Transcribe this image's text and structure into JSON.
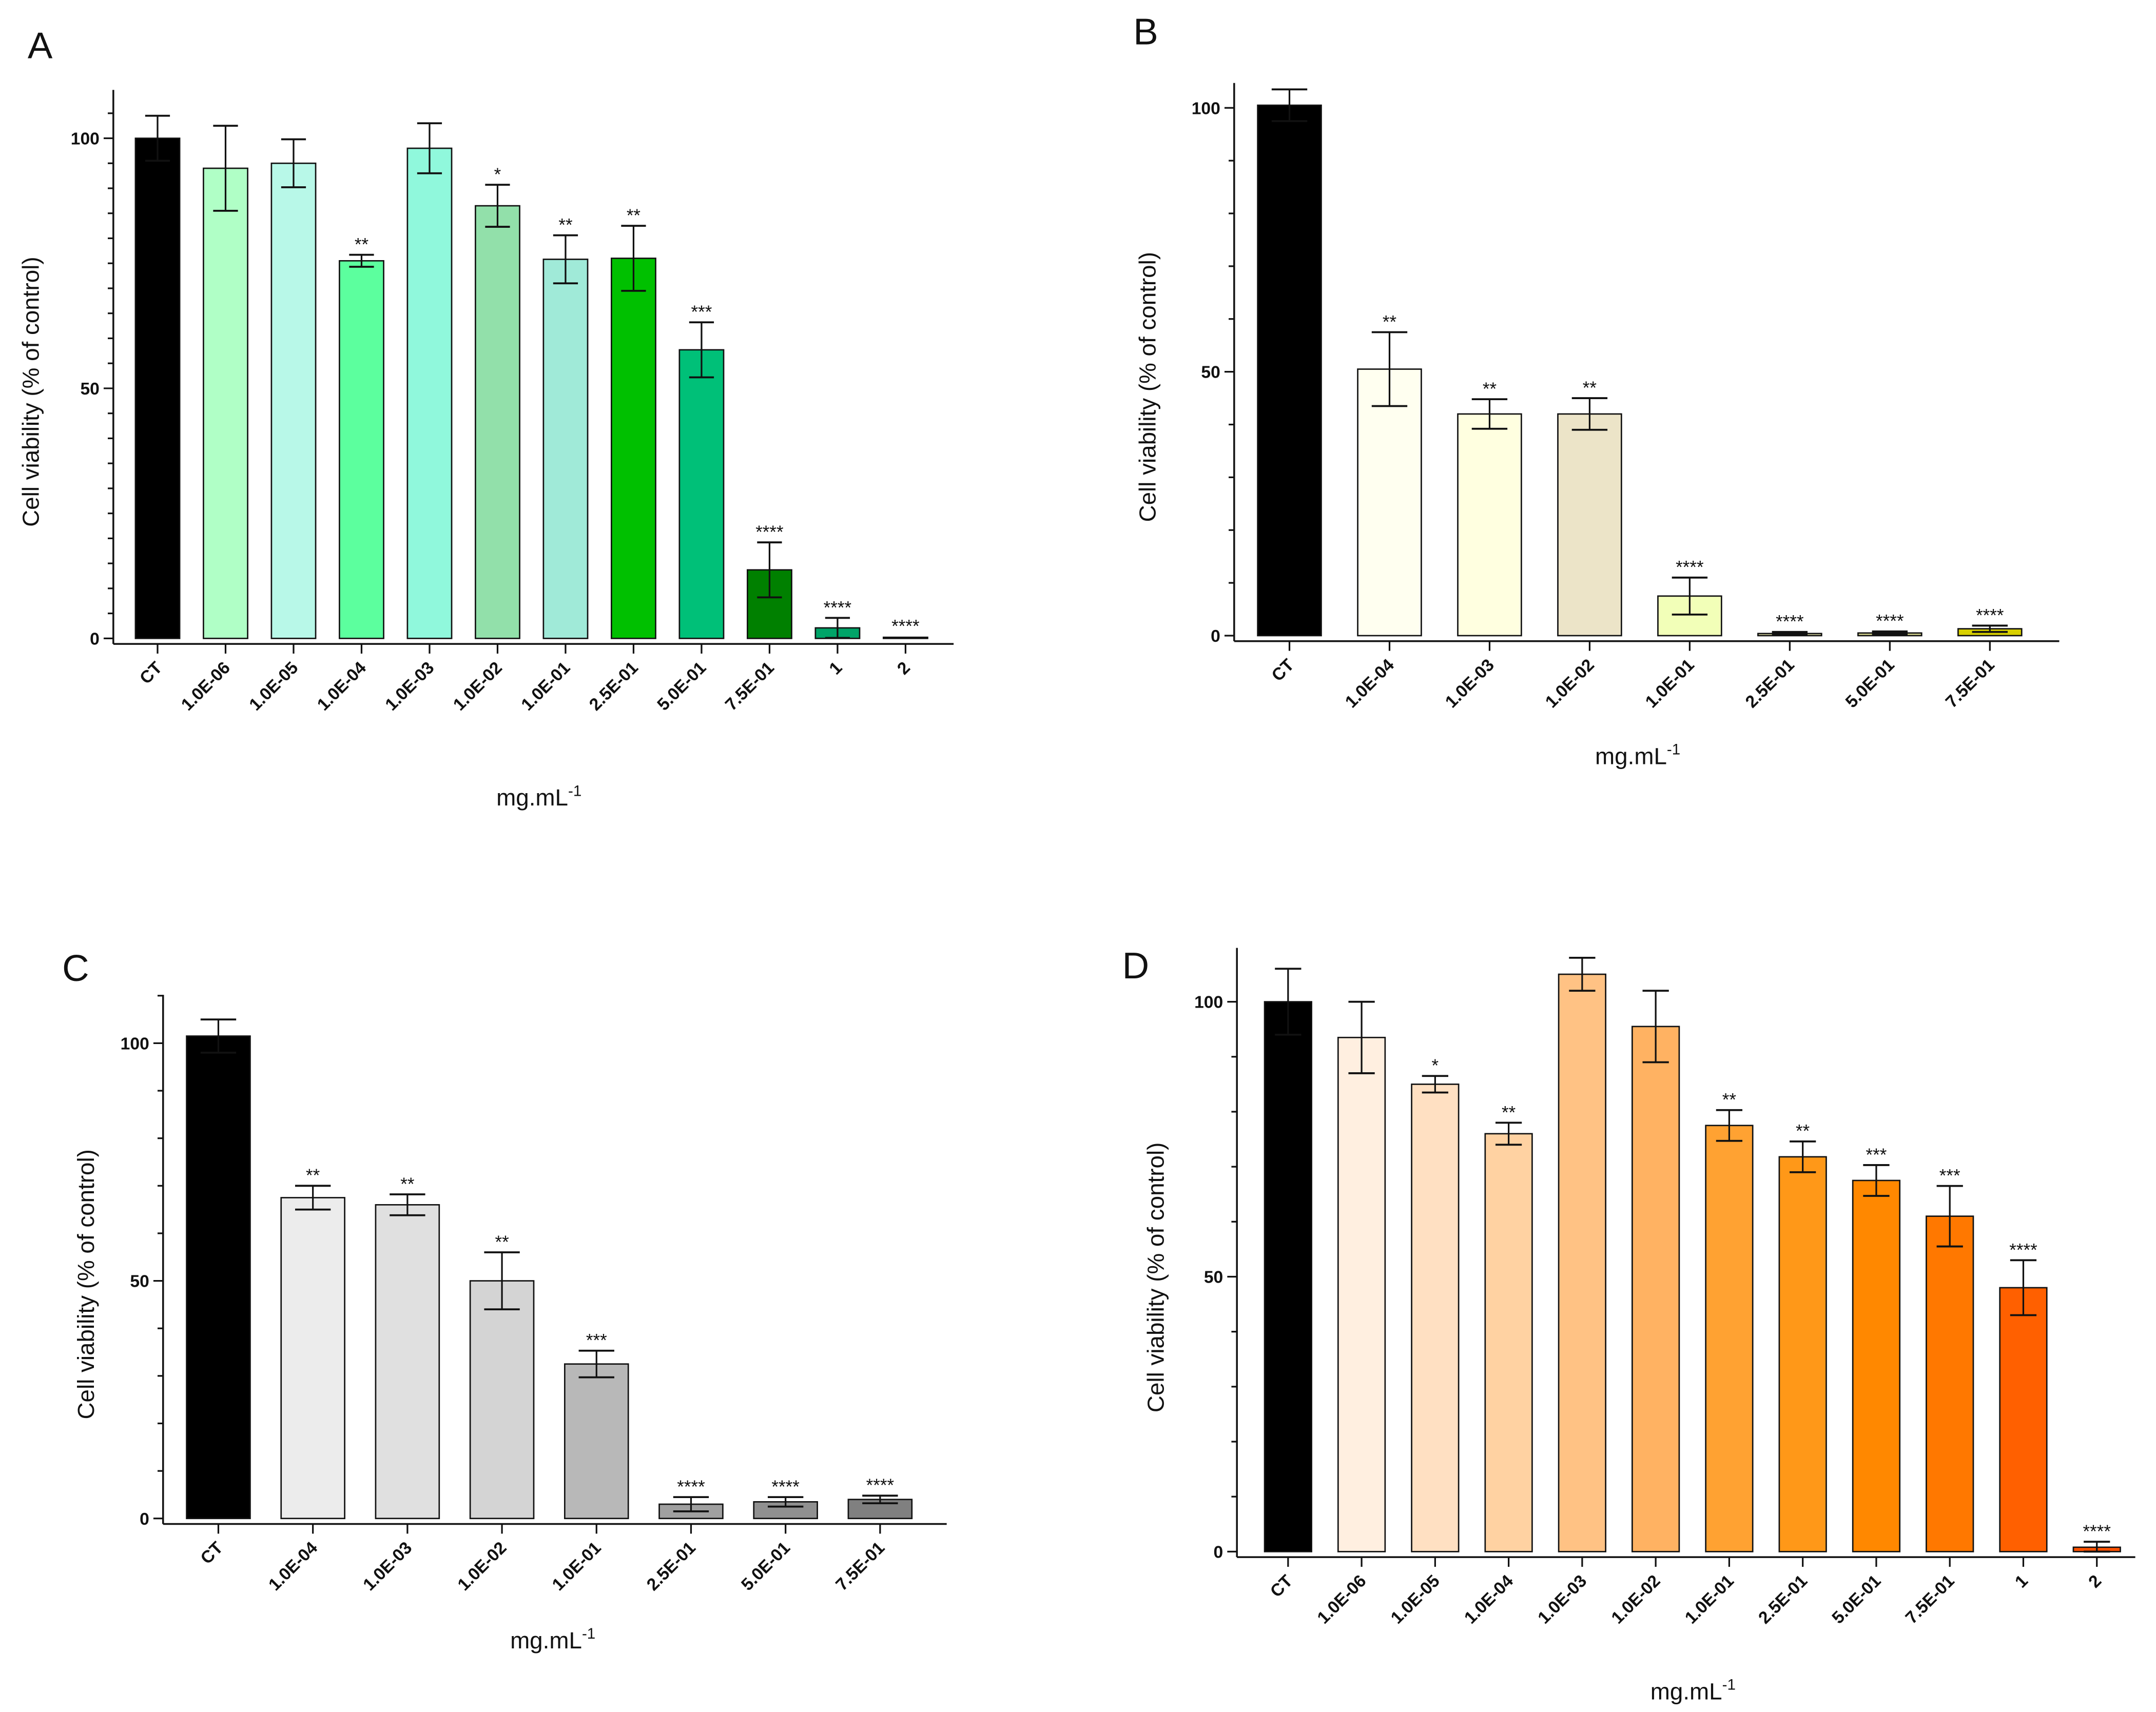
{
  "chart_data": [
    {
      "type": "bar",
      "panel": "A",
      "categories": [
        "CT",
        "1.0E-06",
        "1.0E-05",
        "1.0E-04",
        "1.0E-03",
        "1.0E-02",
        "1.0E-01",
        "2.5E-01",
        "5.0E-01",
        "7.5E-01",
        "1",
        "2"
      ],
      "values": [
        100,
        94,
        95,
        75.5,
        98,
        86.5,
        75.8,
        76,
        57.7,
        13.7,
        2.1,
        0.2
      ],
      "errors": [
        4.5,
        8.5,
        4.8,
        1.2,
        5,
        4.2,
        4.8,
        6.5,
        5.5,
        5.5,
        2,
        0.2
      ],
      "significance": [
        "",
        "",
        "",
        "**",
        "",
        "*",
        "**",
        "**",
        "***",
        "****",
        "****",
        "****"
      ],
      "colors": [
        "#000000",
        "#b0ffc6",
        "#b8f8e8",
        "#5cff9e",
        "#90f8dc",
        "#92e0aa",
        "#a0ead8",
        "#00c000",
        "#00c078",
        "#008000",
        "#00a468",
        "#00805c"
      ],
      "xlabel": "mg.mL",
      "xlabel_sup": "-1",
      "ylabel": "Cell viability (% of control)",
      "yticks": [
        "0",
        "50",
        "100"
      ],
      "ylim": [
        0,
        110
      ]
    },
    {
      "type": "bar",
      "panel": "B",
      "categories": [
        "CT",
        "1.0E-04",
        "1.0E-03",
        "1.0E-02",
        "1.0E-01",
        "2.5E-01",
        "5.0E-01",
        "7.5E-01"
      ],
      "values": [
        100.5,
        50.5,
        42,
        42,
        7.5,
        0.4,
        0.5,
        1.3
      ],
      "errors": [
        3,
        7,
        2.8,
        3,
        3.5,
        0.3,
        0.3,
        0.6
      ],
      "significance": [
        "",
        "**",
        "**",
        "**",
        "****",
        "****",
        "****",
        "****"
      ],
      "colors": [
        "#000000",
        "#fffff0",
        "#ffffe0",
        "#ece4c8",
        "#f2ffb8",
        "#e4e4a8",
        "#d8d890",
        "#d8d000"
      ],
      "xlabel": "mg.mL",
      "xlabel_sup": "-1",
      "ylabel": "Cell viability (% of control)",
      "yticks": [
        "0",
        "50",
        "100"
      ],
      "ylim": [
        0,
        105
      ]
    },
    {
      "type": "bar",
      "panel": "C",
      "categories": [
        "CT",
        "1.0E-04",
        "1.0E-03",
        "1.0E-02",
        "1.0E-01",
        "2.5E-01",
        "5.0E-01",
        "7.5E-01"
      ],
      "values": [
        101.5,
        67.5,
        66,
        50,
        32.5,
        3,
        3.5,
        4
      ],
      "errors": [
        3.5,
        2.5,
        2.2,
        6,
        2.8,
        1.5,
        1,
        0.8
      ],
      "significance": [
        "",
        "**",
        "**",
        "**",
        "***",
        "****",
        "****",
        "****"
      ],
      "colors": [
        "#000000",
        "#ececec",
        "#e0e0e0",
        "#d4d4d4",
        "#b8b8b8",
        "#a0a0a0",
        "#909090",
        "#808080"
      ],
      "xlabel": "mg.mL",
      "xlabel_sup": "-1",
      "ylabel": "Cell viability (% of control)",
      "yticks": [
        "0",
        "50",
        "100"
      ],
      "ylim": [
        0,
        110
      ]
    },
    {
      "type": "bar",
      "panel": "D",
      "categories": [
        "CT",
        "1.0E-06",
        "1.0E-05",
        "1.0E-04",
        "1.0E-03",
        "1.0E-02",
        "1.0E-01",
        "2.5E-01",
        "5.0E-01",
        "7.5E-01",
        "1",
        "2"
      ],
      "values": [
        100,
        93.5,
        85,
        76,
        105,
        95.5,
        77.5,
        71.8,
        67.5,
        61,
        48,
        0.8
      ],
      "errors": [
        6,
        6.5,
        1.5,
        2,
        3,
        6.5,
        2.8,
        2.8,
        2.8,
        5.5,
        5,
        1
      ],
      "significance": [
        "",
        "",
        "*",
        "**",
        "",
        "",
        "**",
        "**",
        "***",
        "***",
        "****",
        "****"
      ],
      "colors": [
        "#000000",
        "#ffefe0",
        "#ffe0c2",
        "#ffd2a2",
        "#ffc284",
        "#ffb262",
        "#ffa232",
        "#ff9818",
        "#ff8800",
        "#ff7800",
        "#ff6000",
        "#ff5000"
      ],
      "xlabel": "mg.mL",
      "xlabel_sup": "-1",
      "ylabel": "Cell viability (% of control)",
      "yticks": [
        "0",
        "50",
        "100"
      ],
      "ylim": [
        0,
        110
      ]
    }
  ]
}
